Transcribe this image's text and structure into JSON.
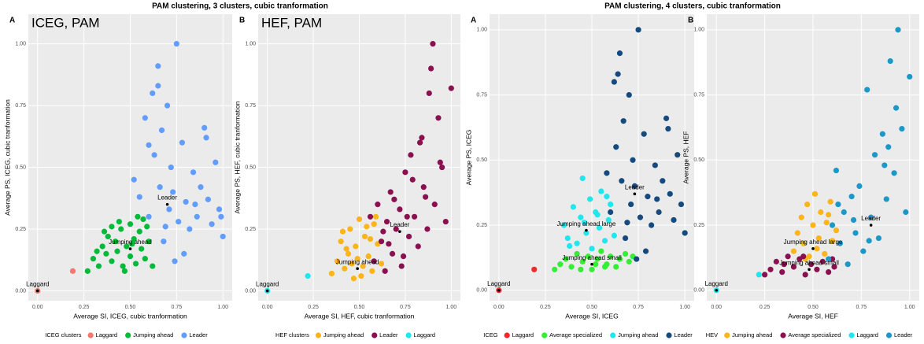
{
  "page_titles": [
    "PAM clustering, 3 clusters, cubic tranformation",
    "PAM clustering, 4 clusters, cubic tranformation"
  ],
  "chart_data": [
    {
      "type": "scatter",
      "panel_label": "A",
      "title": "ICEG, PAM",
      "xlabel": "Average SI, ICEG, cubic tranformation",
      "ylabel": "Average PS, ICEG, cubic tranformation",
      "legend_title": "ICEG clusters",
      "xlim": [
        -0.05,
        1.05
      ],
      "ylim": [
        -0.04,
        1.12
      ],
      "xticks": [
        {
          "value": 0,
          "label": "0.00"
        },
        {
          "value": 0.25,
          "label": "0.25"
        },
        {
          "value": 0.5,
          "label": "0.50"
        },
        {
          "value": 0.75,
          "label": "0.75"
        },
        {
          "value": 1,
          "label": "1.00"
        }
      ],
      "yticks": [
        {
          "value": 0,
          "label": "0.00"
        },
        {
          "value": 0.25,
          "label": "0.25"
        },
        {
          "value": 0.5,
          "label": "0.50"
        },
        {
          "value": 0.75,
          "label": "0.75"
        },
        {
          "value": 1,
          "label": "1.00"
        }
      ],
      "series": [
        {
          "name": "Laggard",
          "color": "#f8766d",
          "x": [
            0,
            0.19
          ],
          "values": [
            0,
            0.08
          ]
        },
        {
          "name": "Jumping ahead",
          "color": "#00ba38",
          "x": [
            0.27,
            0.3,
            0.33,
            0.35,
            0.37,
            0.38,
            0.4,
            0.42,
            0.43,
            0.45,
            0.46,
            0.48,
            0.5,
            0.5,
            0.52,
            0.53,
            0.55,
            0.56,
            0.57,
            0.58,
            0.6,
            0.62,
            0.4,
            0.47,
            0.54,
            0.36,
            0.44,
            0.51,
            0.59,
            0.32
          ],
          "values": [
            0.08,
            0.13,
            0.1,
            0.18,
            0.15,
            0.22,
            0.12,
            0.2,
            0.16,
            0.25,
            0.1,
            0.18,
            0.27,
            0.14,
            0.21,
            0.11,
            0.24,
            0.17,
            0.29,
            0.13,
            0.2,
            0.1,
            0.26,
            0.08,
            0.3,
            0.24,
            0.28,
            0.19,
            0.26,
            0.16
          ]
        },
        {
          "name": "Leader",
          "color": "#619cff",
          "x": [
            0.52,
            0.55,
            0.58,
            0.6,
            0.62,
            0.63,
            0.65,
            0.66,
            0.67,
            0.68,
            0.7,
            0.71,
            0.72,
            0.74,
            0.75,
            0.76,
            0.78,
            0.8,
            0.82,
            0.84,
            0.86,
            0.88,
            0.9,
            0.92,
            0.94,
            0.96,
            0.98,
            1.0,
            0.6,
            0.65,
            0.69,
            0.73,
            0.79,
            0.85,
            0.91,
            0.99
          ],
          "values": [
            0.45,
            0.38,
            0.7,
            0.3,
            0.8,
            0.55,
            0.91,
            0.42,
            0.65,
            0.2,
            0.75,
            0.33,
            0.5,
            0.12,
            1.0,
            0.28,
            0.6,
            0.36,
            0.25,
            0.48,
            0.3,
            0.42,
            0.66,
            0.37,
            0.27,
            0.52,
            0.33,
            0.22,
            0.59,
            0.83,
            0.26,
            0.4,
            0.15,
            0.35,
            0.62,
            0.3
          ]
        }
      ],
      "annotations": [
        {
          "text": "Laggard",
          "x": 0,
          "y": 0
        },
        {
          "text": "Jumping ahead",
          "x": 0.5,
          "y": 0.17
        },
        {
          "text": "Leader",
          "x": 0.7,
          "y": 0.35
        }
      ]
    },
    {
      "type": "scatter",
      "panel_label": "B",
      "title": "HEF, PAM",
      "xlabel": "Average SI, HEF, cubic tranformation",
      "ylabel": "Average PS, HEF, cubic tranformation",
      "legend_title": "HEF clusters",
      "xlim": [
        -0.05,
        1.05
      ],
      "ylim": [
        -0.04,
        1.12
      ],
      "xticks": [
        {
          "value": 0,
          "label": "0.00"
        },
        {
          "value": 0.25,
          "label": "0.25"
        },
        {
          "value": 0.5,
          "label": "0.50"
        },
        {
          "value": 0.75,
          "label": "0.75"
        },
        {
          "value": 1,
          "label": "1.00"
        }
      ],
      "yticks": [
        {
          "value": 0,
          "label": "0.00"
        },
        {
          "value": 0.25,
          "label": "0.25"
        },
        {
          "value": 0.5,
          "label": "0.50"
        },
        {
          "value": 0.75,
          "label": "0.75"
        },
        {
          "value": 1,
          "label": "1.00"
        }
      ],
      "series": [
        {
          "name": "Jumping ahead",
          "color": "#fbb41a",
          "x": [
            0.35,
            0.38,
            0.4,
            0.42,
            0.44,
            0.45,
            0.47,
            0.48,
            0.5,
            0.52,
            0.53,
            0.55,
            0.57,
            0.58,
            0.6,
            0.62,
            0.41,
            0.46,
            0.51,
            0.56,
            0.59,
            0.43,
            0.49,
            0.54
          ],
          "values": [
            0.07,
            0.12,
            0.2,
            0.09,
            0.15,
            0.25,
            0.05,
            0.18,
            0.29,
            0.1,
            0.22,
            0.14,
            0.08,
            0.27,
            0.19,
            0.11,
            0.24,
            0.11,
            0.06,
            0.21,
            0.3,
            0.17,
            0.13,
            0.26
          ]
        },
        {
          "name": "Leader",
          "color": "#8b1050",
          "x": [
            0.56,
            0.58,
            0.6,
            0.62,
            0.64,
            0.65,
            0.67,
            0.68,
            0.7,
            0.72,
            0.73,
            0.75,
            0.77,
            0.78,
            0.8,
            0.82,
            0.84,
            0.85,
            0.87,
            0.88,
            0.9,
            0.91,
            0.93,
            0.95,
            0.97,
            1.0,
            0.63,
            0.69,
            0.74,
            0.79,
            0.83,
            0.89,
            0.94,
            0.66,
            0.76,
            0.86
          ],
          "values": [
            0.3,
            0.12,
            0.35,
            0.2,
            0.08,
            0.28,
            0.4,
            0.15,
            0.25,
            0.33,
            0.1,
            0.48,
            0.22,
            0.55,
            0.3,
            0.18,
            0.62,
            0.42,
            0.25,
            0.8,
            1.0,
            0.35,
            0.7,
            0.5,
            0.28,
            0.82,
            0.24,
            0.37,
            0.14,
            0.45,
            0.6,
            0.9,
            0.52,
            0.19,
            0.3,
            0.38
          ]
        },
        {
          "name": "Laggard",
          "color": "#1ee8ee",
          "x": [
            0,
            0.22
          ],
          "values": [
            0,
            0.06
          ]
        }
      ],
      "annotations": [
        {
          "text": "Laggard",
          "x": 0,
          "y": 0
        },
        {
          "text": "Jumping ahead",
          "x": 0.49,
          "y": 0.09
        },
        {
          "text": "Leader",
          "x": 0.72,
          "y": 0.24
        }
      ]
    },
    {
      "type": "scatter",
      "panel_label": "A",
      "xlabel": "Average SI, ICEG",
      "ylabel": "Average PS, ICEG",
      "legend_title": "ICEG",
      "xlim": [
        -0.05,
        1.05
      ],
      "ylim": [
        -0.04,
        1.06
      ],
      "xticks": [
        {
          "value": 0,
          "label": "0.00"
        },
        {
          "value": 0.25,
          "label": "0.25"
        },
        {
          "value": 0.5,
          "label": "0.50"
        },
        {
          "value": 0.75,
          "label": "0.75"
        },
        {
          "value": 1,
          "label": "1.00"
        }
      ],
      "yticks": [
        {
          "value": 0,
          "label": "0.00"
        },
        {
          "value": 0.25,
          "label": "0.25"
        },
        {
          "value": 0.5,
          "label": "0.50"
        },
        {
          "value": 0.75,
          "label": "0.75"
        },
        {
          "value": 1,
          "label": "1.00"
        }
      ],
      "series": [
        {
          "name": "Laggard",
          "color": "#f4282a",
          "x": [
            0,
            0.19
          ],
          "values": [
            0,
            0.08
          ]
        },
        {
          "name": "Average specialized",
          "color": "#33ee33",
          "x": [
            0.3,
            0.33,
            0.36,
            0.39,
            0.42,
            0.45,
            0.48,
            0.5,
            0.53,
            0.55,
            0.58,
            0.6,
            0.63,
            0.65,
            0.68,
            0.7,
            0.72,
            0.44,
            0.52,
            0.57
          ],
          "values": [
            0.08,
            0.1,
            0.12,
            0.09,
            0.14,
            0.11,
            0.13,
            0.08,
            0.12,
            0.15,
            0.1,
            0.13,
            0.09,
            0.12,
            0.14,
            0.11,
            0.13,
            0.08,
            0.1,
            0.09
          ]
        },
        {
          "name": "Jumping ahead",
          "color": "#1ee8ee",
          "x": [
            0.35,
            0.37,
            0.4,
            0.42,
            0.44,
            0.45,
            0.47,
            0.49,
            0.5,
            0.52,
            0.54,
            0.55,
            0.57,
            0.59,
            0.6,
            0.62,
            0.38,
            0.46,
            0.53,
            0.58
          ],
          "values": [
            0.25,
            0.2,
            0.32,
            0.18,
            0.28,
            0.43,
            0.22,
            0.35,
            0.16,
            0.3,
            0.24,
            0.38,
            0.19,
            0.27,
            0.33,
            0.21,
            0.17,
            0.26,
            0.29,
            0.36
          ]
        },
        {
          "name": "Leader",
          "color": "#154a7e",
          "x": [
            0.58,
            0.6,
            0.62,
            0.63,
            0.65,
            0.66,
            0.67,
            0.68,
            0.7,
            0.71,
            0.72,
            0.74,
            0.75,
            0.76,
            0.78,
            0.8,
            0.82,
            0.84,
            0.86,
            0.88,
            0.9,
            0.92,
            0.94,
            0.96,
            0.98,
            1.0,
            0.64,
            0.69,
            0.73,
            0.79,
            0.85,
            0.91
          ],
          "values": [
            0.45,
            0.3,
            0.8,
            0.55,
            0.91,
            0.42,
            0.65,
            0.2,
            0.75,
            0.33,
            0.5,
            0.12,
            1.0,
            0.28,
            0.6,
            0.36,
            0.25,
            0.48,
            0.3,
            0.42,
            0.66,
            0.37,
            0.27,
            0.52,
            0.33,
            0.22,
            0.83,
            0.26,
            0.4,
            0.15,
            0.35,
            0.62
          ]
        }
      ],
      "annotations": [
        {
          "text": "Laggard",
          "x": 0,
          "y": 0
        },
        {
          "text": "Jumping ahead small",
          "x": 0.5,
          "y": 0.1
        },
        {
          "text": "Jumping ahead large",
          "x": 0.47,
          "y": 0.23
        },
        {
          "text": "Leader",
          "x": 0.73,
          "y": 0.37
        }
      ]
    },
    {
      "type": "scatter",
      "panel_label": "B",
      "xlabel": "Average SI, HEF",
      "ylabel": "Average PS, HEF",
      "legend_title": "HEV",
      "xlim": [
        -0.05,
        1.05
      ],
      "ylim": [
        -0.04,
        1.06
      ],
      "xticks": [
        {
          "value": 0,
          "label": "0.00"
        },
        {
          "value": 0.25,
          "label": "0.25"
        },
        {
          "value": 0.5,
          "label": "0.50"
        },
        {
          "value": 0.75,
          "label": "0.75"
        },
        {
          "value": 1,
          "label": "1.00"
        }
      ],
      "yticks": [
        {
          "value": 0,
          "label": "0.00"
        },
        {
          "value": 0.25,
          "label": "0.25"
        },
        {
          "value": 0.5,
          "label": "0.50"
        },
        {
          "value": 0.75,
          "label": "0.75"
        },
        {
          "value": 1,
          "label": "1.00"
        }
      ],
      "series": [
        {
          "name": "Jumping ahead",
          "color": "#fbb41a",
          "x": [
            0.4,
            0.42,
            0.44,
            0.45,
            0.47,
            0.48,
            0.5,
            0.51,
            0.53,
            0.54,
            0.56,
            0.57,
            0.59,
            0.6,
            0.62,
            0.46,
            0.52,
            0.58
          ],
          "values": [
            0.15,
            0.22,
            0.28,
            0.18,
            0.33,
            0.13,
            0.25,
            0.37,
            0.2,
            0.3,
            0.14,
            0.26,
            0.34,
            0.19,
            0.23,
            0.12,
            0.16,
            0.29
          ]
        },
        {
          "name": "Average specialized",
          "color": "#8b1050",
          "x": [
            0.25,
            0.28,
            0.31,
            0.34,
            0.37,
            0.4,
            0.43,
            0.46,
            0.49,
            0.52,
            0.55,
            0.58,
            0.61,
            0.45,
            0.35,
            0.6
          ],
          "values": [
            0.06,
            0.08,
            0.11,
            0.07,
            0.13,
            0.09,
            0.12,
            0.06,
            0.1,
            0.08,
            0.11,
            0.07,
            0.09,
            0.13,
            0.1,
            0.12
          ]
        },
        {
          "name": "Laggard",
          "color": "#1ee8ee",
          "x": [
            0,
            0.22
          ],
          "values": [
            0,
            0.06
          ]
        },
        {
          "name": "Leader",
          "color": "#1b98c8",
          "x": [
            0.58,
            0.6,
            0.62,
            0.64,
            0.66,
            0.68,
            0.7,
            0.72,
            0.74,
            0.76,
            0.78,
            0.8,
            0.82,
            0.84,
            0.86,
            0.88,
            0.9,
            0.92,
            0.94,
            0.96,
            0.98,
            1.0,
            0.63,
            0.71,
            0.79,
            0.87,
            0.93,
            0.89
          ],
          "values": [
            0.12,
            0.25,
            0.46,
            0.18,
            0.3,
            0.1,
            0.36,
            0.22,
            0.4,
            0.15,
            0.77,
            0.28,
            0.52,
            0.2,
            0.6,
            0.35,
            0.88,
            0.45,
            1.0,
            0.62,
            0.3,
            0.82,
            0.33,
            0.27,
            0.19,
            0.48,
            0.7,
            0.55
          ]
        }
      ],
      "annotations": [
        {
          "text": "Laggard",
          "x": 0,
          "y": 0
        },
        {
          "text": "Jumping ahead small",
          "x": 0.48,
          "y": 0.08
        },
        {
          "text": "Jumping ahead large",
          "x": 0.5,
          "y": 0.16
        },
        {
          "text": "Leader",
          "x": 0.8,
          "y": 0.25
        }
      ]
    }
  ]
}
